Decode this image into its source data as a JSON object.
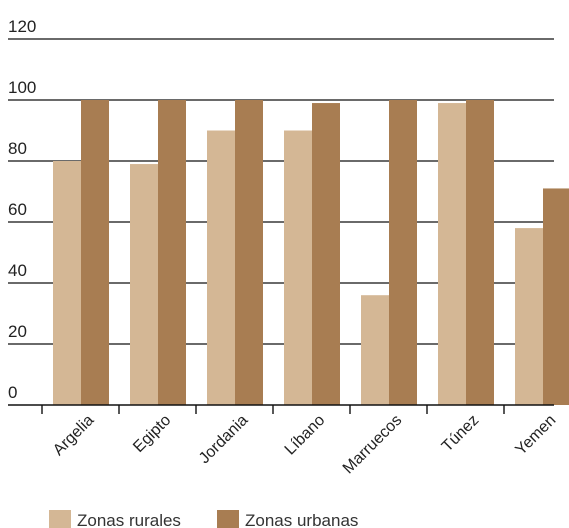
{
  "chart_data": {
    "type": "bar",
    "categories": [
      "Argelia",
      "Egipto",
      "Jordania",
      "Líbano",
      "Marruecos",
      "Túnez",
      "Yemen"
    ],
    "series": [
      {
        "name": "Zonas rurales",
        "color": "#d4b795",
        "values": [
          80,
          79,
          90,
          90,
          36,
          99,
          58
        ]
      },
      {
        "name": "Zonas urbanas",
        "color": "#a87d52",
        "values": [
          100,
          100,
          100,
          99,
          100,
          100,
          71
        ]
      }
    ],
    "yticks": [
      0,
      20,
      40,
      60,
      80,
      100,
      120
    ],
    "ylim": [
      0,
      120
    ],
    "title": "",
    "xlabel": "",
    "ylabel": "",
    "grid": true,
    "legend_position": "bottom-left"
  }
}
